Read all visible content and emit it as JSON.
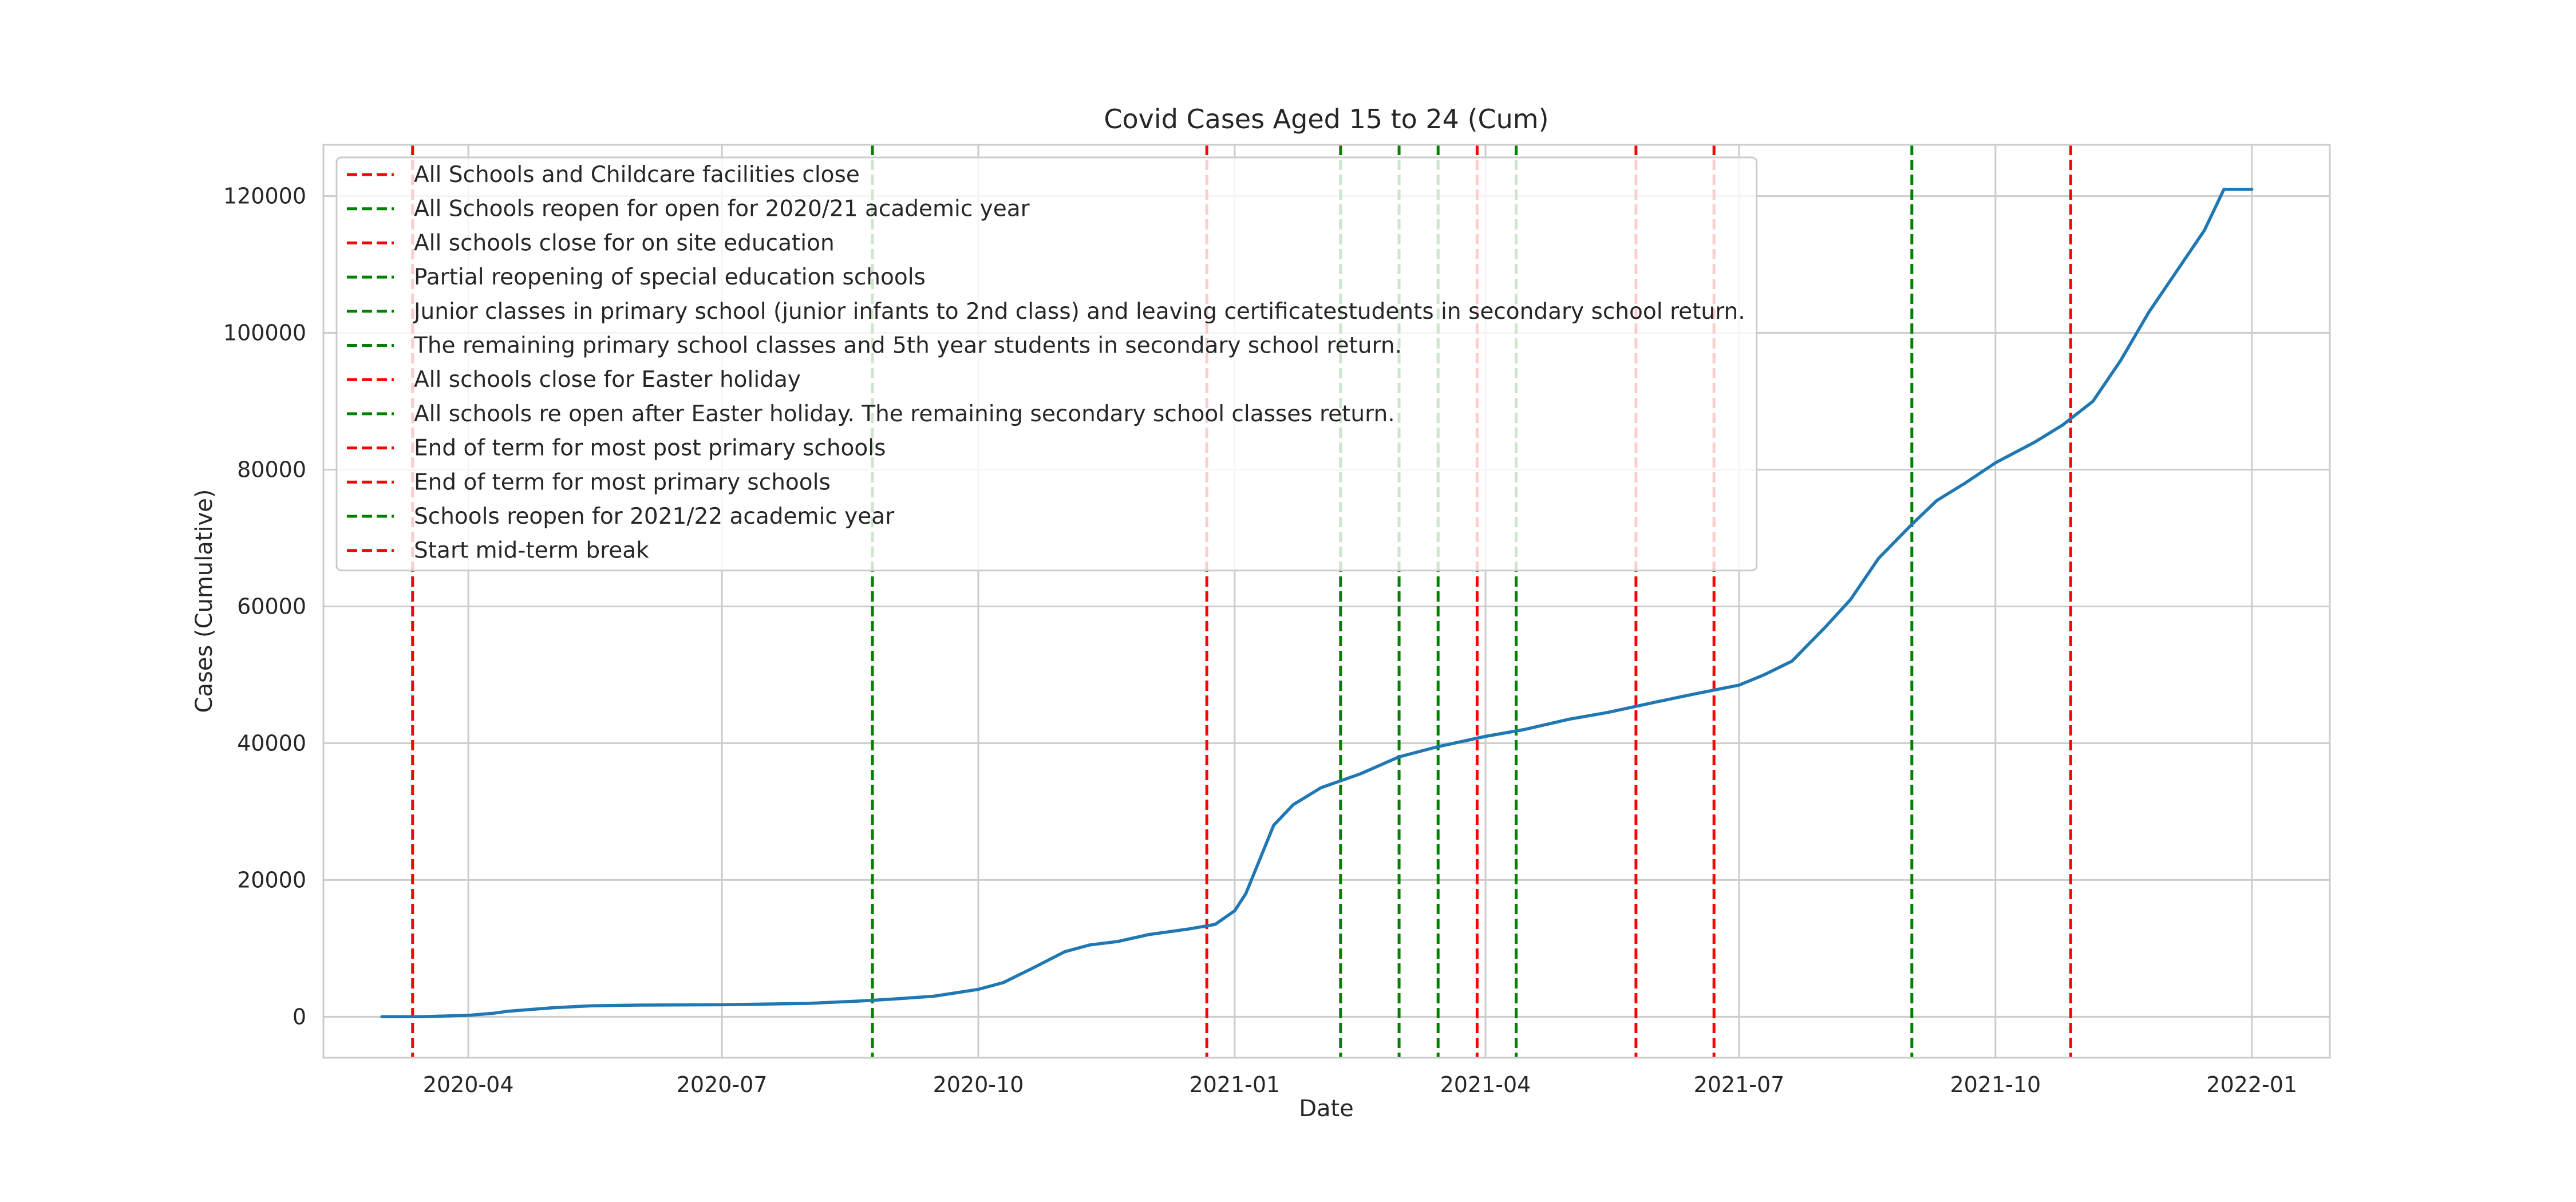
{
  "chart_data": {
    "type": "line",
    "title": "Covid Cases Aged 15 to 24 (Cum)",
    "xlabel": "Date",
    "ylabel": "Cases (Cumulative)",
    "xlim": [
      "2020-02-09",
      "2022-01-29"
    ],
    "ylim": [
      -6000,
      127500
    ],
    "grid": true,
    "legend_position": "top-left",
    "x_ticks": [
      {
        "date": "2020-04-01",
        "label": "2020-04"
      },
      {
        "date": "2020-07-01",
        "label": "2020-07"
      },
      {
        "date": "2020-10-01",
        "label": "2020-10"
      },
      {
        "date": "2021-01-01",
        "label": "2021-01"
      },
      {
        "date": "2021-04-01",
        "label": "2021-04"
      },
      {
        "date": "2021-07-01",
        "label": "2021-07"
      },
      {
        "date": "2021-10-01",
        "label": "2021-10"
      },
      {
        "date": "2022-01-01",
        "label": "2022-01"
      }
    ],
    "y_ticks": [
      0,
      20000,
      40000,
      60000,
      80000,
      100000,
      120000
    ],
    "series": [
      {
        "color": "#1f77b4",
        "points": [
          {
            "x": "2020-03-01",
            "y": 0
          },
          {
            "x": "2020-03-15",
            "y": 0
          },
          {
            "x": "2020-04-01",
            "y": 200
          },
          {
            "x": "2020-04-10",
            "y": 500
          },
          {
            "x": "2020-04-15",
            "y": 800
          },
          {
            "x": "2020-05-01",
            "y": 1300
          },
          {
            "x": "2020-05-15",
            "y": 1600
          },
          {
            "x": "2020-06-01",
            "y": 1700
          },
          {
            "x": "2020-07-01",
            "y": 1750
          },
          {
            "x": "2020-08-01",
            "y": 1950
          },
          {
            "x": "2020-08-20",
            "y": 2300
          },
          {
            "x": "2020-09-01",
            "y": 2600
          },
          {
            "x": "2020-09-15",
            "y": 3000
          },
          {
            "x": "2020-10-01",
            "y": 4000
          },
          {
            "x": "2020-10-10",
            "y": 5000
          },
          {
            "x": "2020-10-20",
            "y": 7000
          },
          {
            "x": "2020-11-01",
            "y": 9500
          },
          {
            "x": "2020-11-10",
            "y": 10500
          },
          {
            "x": "2020-11-20",
            "y": 11000
          },
          {
            "x": "2020-12-01",
            "y": 12000
          },
          {
            "x": "2020-12-15",
            "y": 12800
          },
          {
            "x": "2020-12-25",
            "y": 13500
          },
          {
            "x": "2021-01-01",
            "y": 15500
          },
          {
            "x": "2021-01-05",
            "y": 18000
          },
          {
            "x": "2021-01-10",
            "y": 23000
          },
          {
            "x": "2021-01-15",
            "y": 28000
          },
          {
            "x": "2021-01-22",
            "y": 31000
          },
          {
            "x": "2021-02-01",
            "y": 33500
          },
          {
            "x": "2021-02-15",
            "y": 35500
          },
          {
            "x": "2021-03-01",
            "y": 38000
          },
          {
            "x": "2021-03-15",
            "y": 39500
          },
          {
            "x": "2021-04-01",
            "y": 41000
          },
          {
            "x": "2021-04-15",
            "y": 42000
          },
          {
            "x": "2021-05-01",
            "y": 43500
          },
          {
            "x": "2021-05-15",
            "y": 44500
          },
          {
            "x": "2021-06-01",
            "y": 46000
          },
          {
            "x": "2021-06-15",
            "y": 47200
          },
          {
            "x": "2021-07-01",
            "y": 48500
          },
          {
            "x": "2021-07-10",
            "y": 50000
          },
          {
            "x": "2021-07-20",
            "y": 52000
          },
          {
            "x": "2021-08-01",
            "y": 57000
          },
          {
            "x": "2021-08-10",
            "y": 61000
          },
          {
            "x": "2021-08-20",
            "y": 67000
          },
          {
            "x": "2021-09-01",
            "y": 72000
          },
          {
            "x": "2021-09-10",
            "y": 75500
          },
          {
            "x": "2021-09-20",
            "y": 78000
          },
          {
            "x": "2021-10-01",
            "y": 81000
          },
          {
            "x": "2021-10-15",
            "y": 84000
          },
          {
            "x": "2021-10-25",
            "y": 86500
          },
          {
            "x": "2021-11-05",
            "y": 90000
          },
          {
            "x": "2021-11-15",
            "y": 96000
          },
          {
            "x": "2021-11-25",
            "y": 103000
          },
          {
            "x": "2021-12-05",
            "y": 109000
          },
          {
            "x": "2021-12-15",
            "y": 115000
          },
          {
            "x": "2021-12-22",
            "y": 121000
          },
          {
            "x": "2022-01-01",
            "y": 121000
          }
        ]
      }
    ],
    "events": [
      {
        "date": "2020-03-12",
        "color": "#ff0000",
        "label": "All Schools and Childcare facilities close"
      },
      {
        "date": "2020-08-24",
        "color": "#008000",
        "label": "All Schools reopen for open for 2020/21 academic year"
      },
      {
        "date": "2020-12-22",
        "color": "#ff0000",
        "label": "All schools close for on site education"
      },
      {
        "date": "2021-02-08",
        "color": "#008000",
        "label": "Partial reopening of special education schools"
      },
      {
        "date": "2021-03-01",
        "color": "#008000",
        "label": "Junior classes in primary school (junior infants to 2nd class) and leaving certificatestudents in secondary school return."
      },
      {
        "date": "2021-03-15",
        "color": "#008000",
        "label": "The remaining primary school classes and 5th year students in secondary school return."
      },
      {
        "date": "2021-03-29",
        "color": "#ff0000",
        "label": "All schools close for Easter holiday"
      },
      {
        "date": "2021-04-12",
        "color": "#008000",
        "label": "All schools re open after Easter holiday. The remaining secondary school classes return."
      },
      {
        "date": "2021-05-25",
        "color": "#ff0000",
        "label": "End of term for most post primary schools"
      },
      {
        "date": "2021-06-22",
        "color": "#ff0000",
        "label": "End of term for most primary schools"
      },
      {
        "date": "2021-09-01",
        "color": "#008000",
        "label": "Schools reopen for 2021/22 academic year"
      },
      {
        "date": "2021-10-28",
        "color": "#ff0000",
        "label": "Start mid-term break"
      }
    ]
  }
}
